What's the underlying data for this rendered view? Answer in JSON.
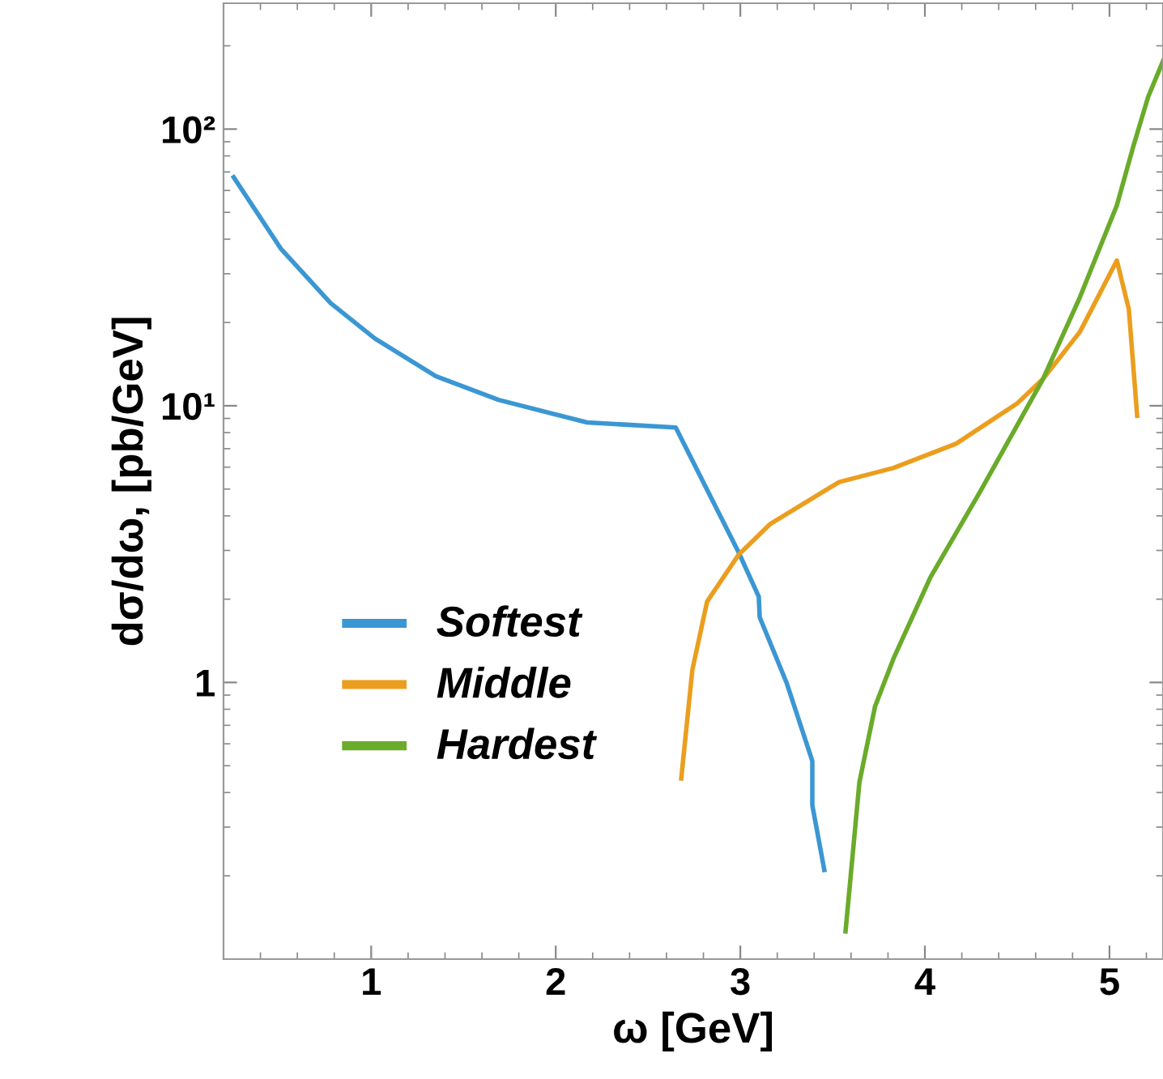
{
  "chart_data": {
    "type": "line",
    "xlabel": "ω [GeV]",
    "ylabel": "dσ/dω, [pb/GeV]",
    "log": "y",
    "xlim": [
      0.2,
      5.29
    ],
    "xticks": [
      1,
      2,
      3,
      4,
      5
    ],
    "ylim": [
      0.1,
      285
    ],
    "yticks": [
      {
        "value": 1,
        "label": "1"
      },
      {
        "value": 10,
        "label": "10¹"
      },
      {
        "value": 100,
        "label": "10²"
      }
    ],
    "grid": false,
    "legend": "bottom left",
    "marker": "none",
    "line_style": "solid",
    "series": [
      {
        "name": "Softest",
        "color": "#3b97d3",
        "x": [
          0.255,
          0.51,
          0.78,
          1.02,
          1.35,
          1.69,
          2.17,
          2.65,
          2.99,
          3.1,
          3.105,
          3.25,
          3.39,
          3.39,
          3.455
        ],
        "values": [
          67,
          37,
          23.5,
          17.5,
          12.8,
          10.5,
          8.7,
          8.35,
          2.96,
          2.04,
          1.72,
          1.0,
          0.52,
          0.36,
          0.21
        ]
      },
      {
        "name": "Middle",
        "color": "#eb9e1e",
        "x": [
          2.68,
          2.74,
          2.82,
          2.99,
          3.16,
          3.535,
          3.83,
          4.17,
          4.5,
          4.64,
          4.84,
          5.04,
          5.105,
          5.15
        ],
        "values": [
          0.45,
          1.11,
          1.96,
          2.89,
          3.73,
          5.3,
          5.96,
          7.3,
          10.2,
          12.5,
          18.5,
          33.5,
          22.3,
          9.2
        ]
      },
      {
        "name": "Hardest",
        "color": "#6aab2a",
        "x": [
          3.57,
          3.645,
          3.73,
          3.83,
          4.03,
          4.3,
          4.64,
          4.84,
          5.04,
          5.13,
          5.21,
          5.29
        ],
        "values": [
          0.126,
          0.435,
          0.82,
          1.22,
          2.4,
          4.9,
          12.5,
          24.7,
          53,
          87,
          131,
          176
        ]
      }
    ]
  }
}
